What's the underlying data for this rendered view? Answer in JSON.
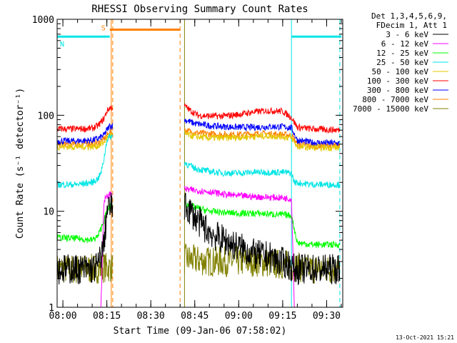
{
  "chart_data": {
    "type": "line",
    "title": "RHESSI Observing Summary Count Rates",
    "xlabel": "Start Time (09-Jan-06 07:58:02)",
    "ylabel": "Count Rate (s⁻¹ detector⁻¹)",
    "y_scale": "log",
    "ylim": [
      1,
      1000
    ],
    "xlim": [
      "07:58:02",
      "09:35:30"
    ],
    "x_ticks": [
      "08:00",
      "08:15",
      "08:30",
      "08:45",
      "09:00",
      "09:15",
      "09:30"
    ],
    "y_ticks": [
      "1",
      "10",
      "100",
      "1000"
    ],
    "legend_header": [
      "Det 1,3,4,5,6,9,",
      "FDecim 1, Att 1"
    ],
    "legend_position": "top-right",
    "timestamp": "13-Oct-2021 15:21",
    "gaps": [
      [
        "08:17:00",
        "08:41:30"
      ]
    ],
    "markers": [
      {
        "label": "S",
        "start": "08:16:00",
        "end": "08:40:00",
        "value": 780,
        "color": "#ff8000",
        "line_style": "solid"
      },
      {
        "label": "N",
        "start": "07:58:02",
        "end": "08:16:00",
        "value": 660,
        "color": "#00e5e5",
        "line_style": "solid"
      },
      {
        "label": "",
        "start": "09:18:00",
        "end": "09:35:00",
        "value": 660,
        "color": "#00e5e5",
        "line_style": "solid"
      }
    ],
    "vlines": [
      {
        "time": "07:58:02",
        "color": "#00e5e5",
        "style": "solid"
      },
      {
        "time": "08:16:30",
        "color": "#ff8000",
        "style": "solid"
      },
      {
        "time": "08:17:00",
        "color": "#ff8000",
        "style": "dash"
      },
      {
        "time": "08:40:00",
        "color": "#ff8000",
        "style": "dash"
      },
      {
        "time": "08:41:30",
        "color": "#808000",
        "style": "solid"
      },
      {
        "time": "09:18:00",
        "color": "#00e5e5",
        "style": "solid"
      },
      {
        "time": "09:34:30",
        "color": "#00e5e5",
        "style": "dash"
      }
    ],
    "series": [
      {
        "name": "3 - 6 keV",
        "color": "#000000",
        "x": [
          "07:58:02",
          "08:05",
          "08:10",
          "08:12",
          "08:14",
          "08:15",
          "08:16",
          "08:17",
          "08:41:30",
          "08:43",
          "08:46",
          "08:49",
          "08:52",
          "08:55",
          "08:58",
          "09:02",
          "09:06",
          "09:10",
          "09:14",
          "09:17",
          "09:19",
          "09:22",
          "09:26",
          "09:30",
          "09:34:30"
        ],
        "y": [
          2.5,
          2.5,
          2.5,
          2.7,
          4.5,
          10,
          11,
          11,
          11,
          10.5,
          8,
          6.5,
          5.5,
          5,
          4.5,
          4,
          3.5,
          3.4,
          3.0,
          2.8,
          2.5,
          2.5,
          2.5,
          2.5,
          2.5
        ]
      },
      {
        "name": "6 - 12 keV",
        "color": "#ff00ff",
        "x": [
          "07:58:02",
          "08:05",
          "08:10",
          "08:13",
          "08:14",
          "08:15",
          "08:16",
          "08:17",
          "08:41:30",
          "08:45",
          "08:50",
          "08:55",
          "09:00",
          "09:05",
          "09:10",
          "09:15",
          "09:18",
          "09:19",
          "09:25",
          "09:34:30"
        ],
        "y": [
          1,
          1,
          1,
          1,
          13,
          14,
          15,
          16,
          17,
          16.5,
          16,
          15,
          14.5,
          14.2,
          14,
          13.8,
          13.5,
          1,
          1,
          1
        ]
      },
      {
        "name": "12 - 25 keV",
        "color": "#00ff00",
        "x": [
          "07:58:02",
          "08:05",
          "08:10",
          "08:12",
          "08:14",
          "08:15",
          "08:16",
          "08:17",
          "08:41:30",
          "08:45",
          "08:50",
          "08:55",
          "09:00",
          "09:05",
          "09:10",
          "09:15",
          "09:18",
          "09:20",
          "09:25",
          "09:30",
          "09:34:30"
        ],
        "y": [
          5.3,
          5.2,
          5.0,
          5.5,
          8,
          10,
          11,
          12,
          12,
          11,
          10,
          9.7,
          9.5,
          9.5,
          9.4,
          9.2,
          9.0,
          4.7,
          4.5,
          4.5,
          4.5
        ]
      },
      {
        "name": "25 - 50 keV",
        "color": "#00e5e5",
        "x": [
          "07:58:02",
          "08:05",
          "08:10",
          "08:12",
          "08:13",
          "08:14",
          "08:15",
          "08:16",
          "08:17",
          "08:41:30",
          "08:45",
          "08:50",
          "08:55",
          "09:00",
          "09:05",
          "09:10",
          "09:15",
          "09:18",
          "09:19",
          "09:25",
          "09:34:30"
        ],
        "y": [
          19,
          19,
          20,
          22,
          25,
          35,
          55,
          60,
          60,
          32,
          28,
          26,
          25,
          25,
          25.5,
          25.5,
          25.5,
          25,
          20,
          19,
          19
        ]
      },
      {
        "name": "50 - 100 keV",
        "color": "#e5c800",
        "x": [
          "07:58:02",
          "08:05",
          "08:10",
          "08:12",
          "08:14",
          "08:15",
          "08:16",
          "08:17",
          "08:41:30",
          "08:45",
          "08:50",
          "08:55",
          "09:00",
          "09:05",
          "09:10",
          "09:15",
          "09:18",
          "09:20",
          "09:25",
          "09:34:30"
        ],
        "y": [
          47,
          47,
          47,
          48,
          52,
          58,
          62,
          62,
          64,
          60,
          58,
          58,
          59,
          60,
          61,
          60,
          58,
          47,
          46,
          46
        ]
      },
      {
        "name": "100 - 300 keV",
        "color": "#ff0000",
        "x": [
          "07:58:02",
          "08:05",
          "08:10",
          "08:12",
          "08:14",
          "08:15",
          "08:16",
          "08:17",
          "08:41:30",
          "08:43",
          "08:46",
          "08:50",
          "08:55",
          "09:00",
          "09:05",
          "09:10",
          "09:15",
          "09:18",
          "09:20",
          "09:25",
          "09:34:30"
        ],
        "y": [
          72,
          72,
          73,
          78,
          92,
          110,
          120,
          120,
          125,
          115,
          100,
          98,
          98,
          102,
          108,
          112,
          110,
          95,
          75,
          72,
          70
        ]
      },
      {
        "name": "300 - 800 keV",
        "color": "#0000ff",
        "x": [
          "07:58:02",
          "08:05",
          "08:10",
          "08:12",
          "08:14",
          "08:15",
          "08:16",
          "08:17",
          "08:41:30",
          "08:45",
          "08:50",
          "08:55",
          "09:00",
          "09:05",
          "09:10",
          "09:15",
          "09:18",
          "09:20",
          "09:25",
          "09:34:30"
        ],
        "y": [
          54,
          54,
          55,
          57,
          62,
          70,
          78,
          78,
          90,
          82,
          78,
          76,
          75,
          75,
          76,
          76,
          74,
          55,
          52,
          51
        ]
      },
      {
        "name": "800 - 7000 keV",
        "color": "#ff8000",
        "x": [
          "07:58:02",
          "08:05",
          "08:10",
          "08:12",
          "08:14",
          "08:15",
          "08:16",
          "08:17",
          "08:41:30",
          "08:45",
          "08:50",
          "08:55",
          "09:00",
          "09:05",
          "09:10",
          "09:15",
          "09:18",
          "09:20",
          "09:25",
          "09:34:30"
        ],
        "y": [
          50,
          50,
          51,
          52,
          56,
          62,
          66,
          66,
          70,
          66,
          64,
          63,
          63,
          64,
          64,
          63,
          62,
          50,
          48,
          48
        ]
      },
      {
        "name": "7000 - 15000 keV",
        "color": "#808000",
        "x": [
          "07:58:02",
          "08:05",
          "08:10",
          "08:14",
          "08:17",
          "08:41:30",
          "08:45",
          "08:50",
          "08:55",
          "09:00",
          "09:05",
          "09:10",
          "09:15",
          "09:20",
          "09:25",
          "09:34:30"
        ],
        "y": [
          2.5,
          2.5,
          2.5,
          2.6,
          2.6,
          3.2,
          3.1,
          3.0,
          3.0,
          3.0,
          3.0,
          2.9,
          2.8,
          2.6,
          2.5,
          2.5
        ]
      }
    ]
  }
}
